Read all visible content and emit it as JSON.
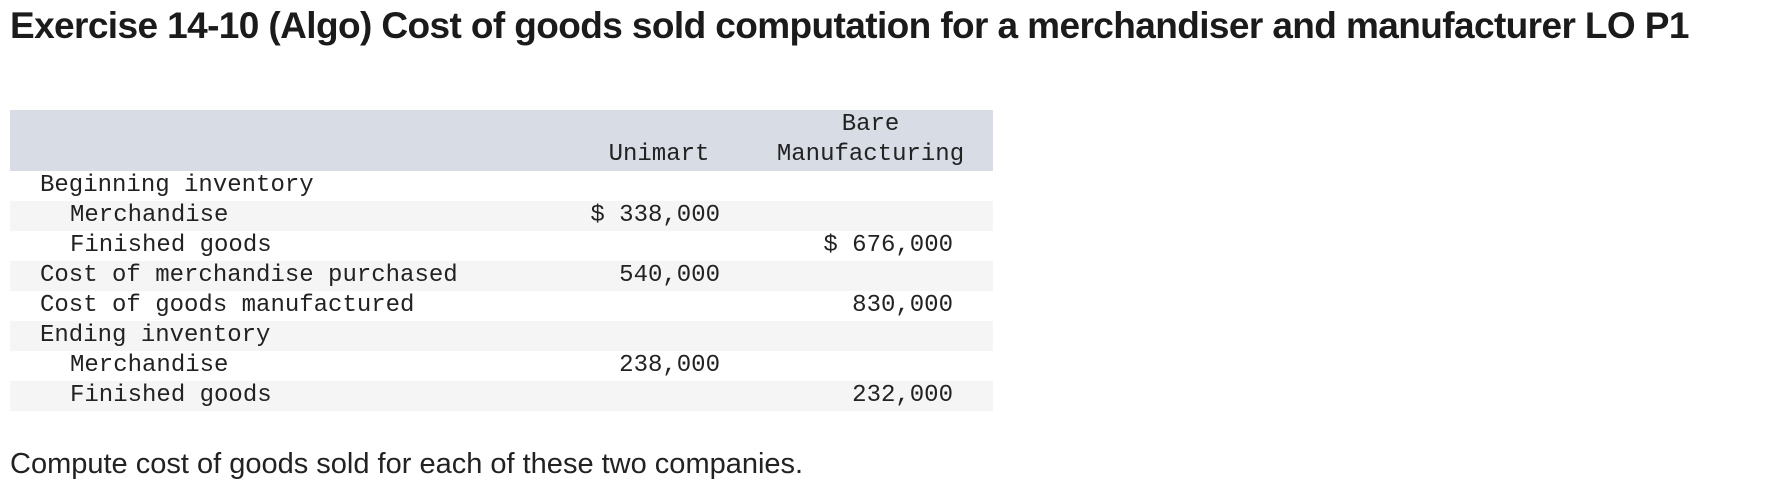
{
  "title": "Exercise 14-10 (Algo) Cost of goods sold computation for a merchandiser and manufacturer LO P1",
  "table": {
    "headers": {
      "label": "",
      "unimart": "Unimart",
      "bare_line1": "Bare",
      "bare_line2": "Manufacturing"
    },
    "rows": [
      {
        "label": "Beginning inventory",
        "unimart": "",
        "bare": ""
      },
      {
        "label": "Merchandise",
        "unimart": "$ 338,000",
        "bare": ""
      },
      {
        "label": "Finished goods",
        "unimart": "",
        "bare": "$ 676,000"
      },
      {
        "label": "Cost of merchandise purchased",
        "unimart": "540,000",
        "bare": ""
      },
      {
        "label": "Cost of goods manufactured",
        "unimart": "",
        "bare": "830,000"
      },
      {
        "label": "Ending inventory",
        "unimart": "",
        "bare": ""
      },
      {
        "label": "Merchandise",
        "unimart": "238,000",
        "bare": ""
      },
      {
        "label": "Finished goods",
        "unimart": "",
        "bare": "232,000"
      }
    ]
  },
  "instruction": "Compute cost of goods sold for each of these two companies."
}
